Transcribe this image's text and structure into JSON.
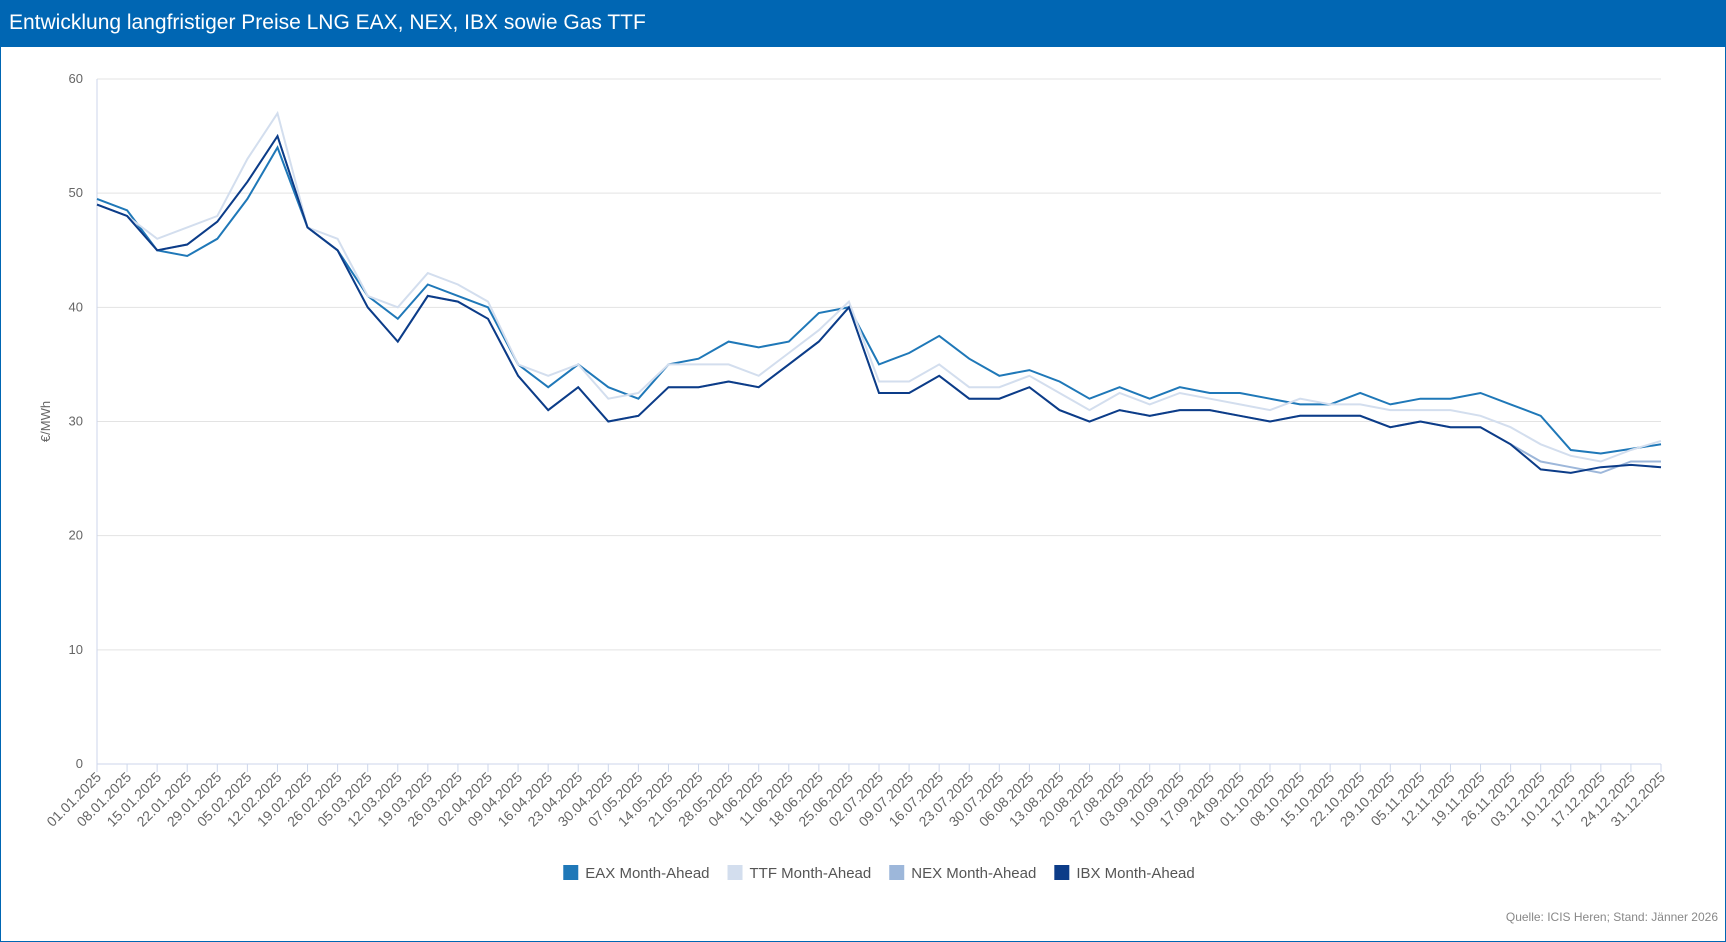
{
  "chart_data": {
    "type": "line",
    "title": "Entwicklung langfristiger Preise LNG EAX, NEX, IBX sowie Gas TTF",
    "ylabel": "€/MWh",
    "source": "Quelle: ICIS Heren; Stand: Jänner 2026",
    "x": [
      "01.01.2025",
      "08.01.2025",
      "15.01.2025",
      "22.01.2025",
      "29.01.2025",
      "05.02.2025",
      "12.02.2025",
      "19.02.2025",
      "26.02.2025",
      "05.03.2025",
      "12.03.2025",
      "19.03.2025",
      "26.03.2025",
      "02.04.2025",
      "09.04.2025",
      "16.04.2025",
      "23.04.2025",
      "30.04.2025",
      "07.05.2025",
      "14.05.2025",
      "21.05.2025",
      "28.05.2025",
      "04.06.2025",
      "11.06.2025",
      "18.06.2025",
      "25.06.2025",
      "02.07.2025",
      "09.07.2025",
      "16.07.2025",
      "23.07.2025",
      "30.07.2025",
      "06.08.2025",
      "13.08.2025",
      "20.08.2025",
      "27.08.2025",
      "03.09.2025",
      "10.09.2025",
      "17.09.2025",
      "24.09.2025",
      "01.10.2025",
      "08.10.2025",
      "15.10.2025",
      "22.10.2025",
      "29.10.2025",
      "05.11.2025",
      "12.11.2025",
      "19.11.2025",
      "26.11.2025",
      "03.12.2025",
      "10.12.2025",
      "17.12.2025",
      "24.12.2025",
      "31.12.2025"
    ],
    "ylim": [
      0,
      60
    ],
    "yticks": [
      0,
      10,
      20,
      30,
      40,
      50,
      60
    ],
    "grid": true,
    "legend": "bottom",
    "series": [
      {
        "name": "EAX Month-Ahead",
        "color": "#1f78b8",
        "values": [
          49.5,
          48.5,
          45,
          44.5,
          46,
          49.5,
          54,
          47,
          45,
          41,
          39,
          42,
          41,
          40,
          35,
          33,
          35,
          33,
          32,
          35,
          35.5,
          37,
          36.5,
          37,
          39.5,
          40,
          35,
          36,
          37.5,
          35.5,
          34,
          34.5,
          33.5,
          32,
          33,
          32,
          33,
          32.5,
          32.5,
          32,
          31.5,
          31.5,
          32.5,
          31.5,
          32,
          32,
          32.5,
          31.5,
          30.5,
          27.5,
          27.2,
          27.6,
          28
        ]
      },
      {
        "name": "TTF Month-Ahead",
        "color": "#d3deee",
        "values": [
          49,
          48,
          46,
          47,
          48,
          53,
          57,
          47,
          46,
          41,
          40,
          43,
          42,
          40.5,
          35,
          34,
          35,
          32,
          32.5,
          35,
          35,
          35,
          34,
          36,
          38,
          40.5,
          33.5,
          33.5,
          35,
          33,
          33,
          34,
          32.5,
          31,
          32.5,
          31.5,
          32.5,
          32,
          31.5,
          31,
          32,
          31.5,
          31.5,
          31,
          31,
          31,
          30.5,
          29.5,
          28,
          27,
          26.5,
          27.5,
          28.3
        ]
      },
      {
        "name": "NEX Month-Ahead",
        "color": "#9db7da",
        "values": [
          49,
          48,
          45,
          45.5,
          47.5,
          51,
          55,
          47,
          45,
          40,
          37,
          41,
          40.5,
          39,
          34,
          31,
          33,
          30,
          30.5,
          33,
          33,
          33.5,
          33,
          35,
          37,
          40,
          32.5,
          32.5,
          34,
          32,
          32,
          33,
          31,
          30,
          31,
          30.5,
          31,
          31,
          30.5,
          30,
          30.5,
          30.5,
          30.5,
          29.5,
          30,
          29.5,
          29.5,
          28,
          26.5,
          26,
          25.5,
          26.5,
          26.5
        ]
      },
      {
        "name": "IBX Month-Ahead",
        "color": "#0c3c88",
        "values": [
          49,
          48,
          45,
          45.5,
          47.5,
          51,
          55,
          47,
          45,
          40,
          37,
          41,
          40.5,
          39,
          34,
          31,
          33,
          30,
          30.5,
          33,
          33,
          33.5,
          33,
          35,
          37,
          40,
          32.5,
          32.5,
          34,
          32,
          32,
          33,
          31,
          30,
          31,
          30.5,
          31,
          31,
          30.5,
          30,
          30.5,
          30.5,
          30.5,
          29.5,
          30,
          29.5,
          29.5,
          28,
          25.8,
          25.5,
          26,
          26.2,
          26
        ]
      }
    ]
  }
}
